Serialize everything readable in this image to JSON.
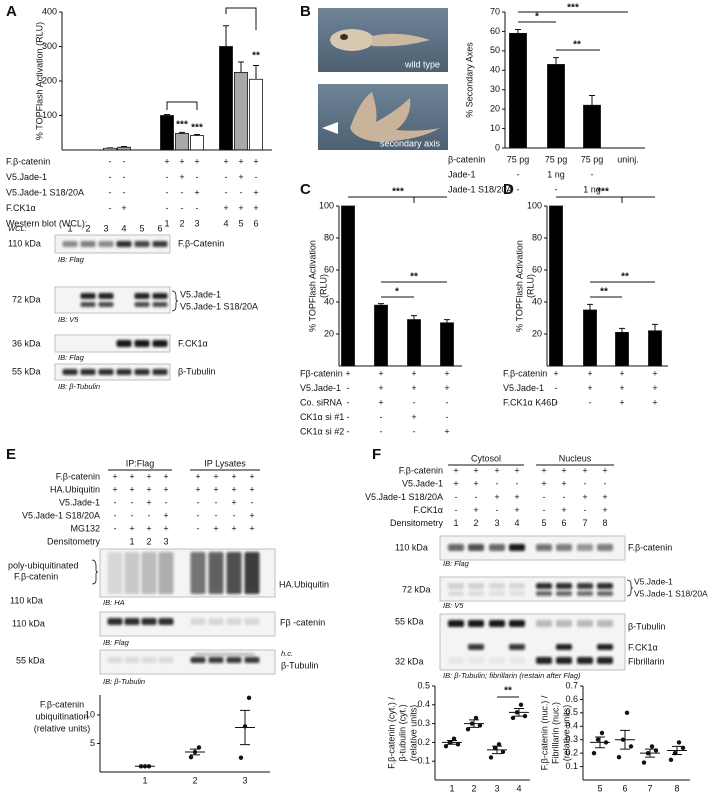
{
  "panel_labels": [
    "A",
    "B",
    "C",
    "D",
    "E",
    "F"
  ],
  "chart_data": [
    {
      "type": "bar",
      "ylabel": [
        "% TOPFlash Activation (RLU)"
      ],
      "ylim": [
        0,
        400
      ],
      "yticks": [
        100,
        200,
        300,
        400
      ],
      "values": [
        5,
        8,
        100,
        48,
        42,
        300,
        225,
        205
      ],
      "errors": [
        1,
        2,
        3,
        3,
        3,
        60,
        30,
        40
      ],
      "colors": [
        "#ffffff",
        "#a8a8a8",
        "#000000",
        "#a8a8a8",
        "#ffffff",
        "#000000",
        "#a8a8a8",
        "#ffffff"
      ],
      "annotations": [
        "***",
        "***",
        "**"
      ],
      "conditions": [
        {
          "label": "F.β-catenin",
          "cells": [
            "-",
            "-",
            "+",
            "+",
            "+",
            "+",
            "+",
            "+"
          ]
        },
        {
          "label": "V5.Jade-1",
          "cells": [
            "-",
            "-",
            "-",
            "+",
            "-",
            "-",
            "+",
            "-"
          ]
        },
        {
          "label": "V5.Jade-1 S18/20A",
          "cells": [
            "-",
            "-",
            "-",
            "-",
            "+",
            "-",
            "-",
            "+"
          ]
        },
        {
          "label": "F.CK1α",
          "cells": [
            "-",
            "+",
            "-",
            "-",
            "-",
            "+",
            "+",
            "+"
          ]
        },
        {
          "label": "Western blot (WCL):",
          "cells": [
            null,
            null,
            "1",
            "2",
            "3",
            "4",
            "5",
            "6"
          ]
        }
      ]
    },
    {
      "type": "bar",
      "ylabel": [
        "% Secondary Axes"
      ],
      "ylim": [
        0,
        70
      ],
      "yticks": [
        0,
        10,
        20,
        30,
        40,
        50,
        60,
        70
      ],
      "values": [
        59,
        43,
        22,
        0
      ],
      "errors": [
        2,
        3.5,
        5,
        null
      ],
      "color": "#000000",
      "annotations": [
        "*",
        "***",
        "**"
      ],
      "conditions": [
        {
          "label": "β-catenin",
          "cells": [
            "75 pg",
            "75 pg",
            "75 pg",
            "uninj."
          ]
        },
        {
          "label": "Jade-1",
          "cells": [
            "-",
            "1 ng",
            "-",
            null
          ]
        },
        {
          "label": "Jade-1 S18/20A",
          "cells": [
            "-",
            "-",
            "1 ng",
            null
          ]
        }
      ]
    },
    {
      "type": "bar",
      "ylabel": [
        "% TOPFlash Activation",
        "(RLU)"
      ],
      "ylim": [
        0,
        100
      ],
      "yticks": [
        20,
        40,
        60,
        80,
        100
      ],
      "values": [
        100,
        38,
        29,
        27
      ],
      "errors": [
        null,
        1,
        2.5,
        2
      ],
      "color": "#000000",
      "annotations": [
        "***",
        "**",
        "*"
      ],
      "conditions": [
        {
          "label": "Fβ-catenin",
          "cells": [
            "+",
            "+",
            "+",
            "+"
          ]
        },
        {
          "label": "V5.Jade-1",
          "cells": [
            "-",
            "+",
            "+",
            "+"
          ]
        },
        {
          "label": "Co. siRNA",
          "cells": [
            "-",
            "+",
            "-",
            "-"
          ]
        },
        {
          "label": "CK1α si #1",
          "cells": [
            "-",
            "-",
            "+",
            "-"
          ]
        },
        {
          "label": "CK1α si #2",
          "cells": [
            "-",
            "-",
            "-",
            "+"
          ]
        }
      ]
    },
    {
      "type": "bar",
      "ylabel": [
        "% TOPFlash Activation",
        "(RLU)"
      ],
      "ylim": [
        0,
        100
      ],
      "yticks": [
        20,
        40,
        60,
        80,
        100
      ],
      "values": [
        100,
        35,
        21,
        22
      ],
      "errors": [
        null,
        3.5,
        2.5,
        4
      ],
      "color": "#000000",
      "annotations": [
        "***",
        "**",
        "**"
      ],
      "conditions": [
        {
          "label": "F.β-catenin",
          "cells": [
            "+",
            "+",
            "+",
            "+"
          ]
        },
        {
          "label": "V5.Jade-1",
          "cells": [
            "-",
            "+",
            "+",
            "+"
          ]
        },
        {
          "label": "F.CK1α K46D",
          "cells": [
            "-",
            "-",
            "+",
            "+"
          ]
        }
      ]
    },
    {
      "type": "dot",
      "ylabel": [
        "F.β-catenin",
        "ubiquitination",
        "(relative units)"
      ],
      "ylim": [
        0,
        13.5
      ],
      "yticks": [
        5,
        10
      ],
      "categories": [
        "1",
        "2",
        "3"
      ],
      "points": [
        [
          1,
          1,
          1
        ],
        [
          2.6,
          3.5,
          4.3
        ],
        [
          2.5,
          8,
          13
        ]
      ],
      "mean": [
        1,
        3.5,
        7.8
      ],
      "sem": [
        null,
        0.5,
        3
      ]
    },
    {
      "type": "dot",
      "ylabel": [
        "F.β-catenin (cyt.) /",
        "β-tubulin (cyt.)",
        "(relative units)"
      ],
      "ylim": [
        0,
        0.5
      ],
      "yticks": [
        0.1,
        0.2,
        0.3,
        0.4,
        0.5
      ],
      "categories": [
        "1",
        "2",
        "3",
        "4"
      ],
      "points": [
        [
          0.18,
          0.2,
          0.22,
          0.19
        ],
        [
          0.27,
          0.3,
          0.33,
          0.29
        ],
        [
          0.12,
          0.17,
          0.19,
          0.15
        ],
        [
          0.33,
          0.36,
          0.4,
          0.34
        ]
      ],
      "mean": [
        0.2,
        0.3,
        0.16,
        0.36
      ],
      "sem": [
        0.01,
        0.02,
        0.02,
        0.02
      ],
      "annotations": [
        "**"
      ]
    },
    {
      "type": "dot",
      "ylabel": [
        "F.β-catenin (nuc.) /",
        "Fibrillarin (nuc.)",
        "(relative units)"
      ],
      "ylim": [
        0,
        0.7
      ],
      "yticks": [
        0.1,
        0.2,
        0.3,
        0.4,
        0.5,
        0.6,
        0.7
      ],
      "categories": [
        "5",
        "6",
        "7",
        "8"
      ],
      "points": [
        [
          0.2,
          0.3,
          0.35,
          0.28
        ],
        [
          0.17,
          0.3,
          0.5,
          0.25
        ],
        [
          0.13,
          0.2,
          0.25,
          0.22
        ],
        [
          0.15,
          0.2,
          0.28,
          0.24
        ]
      ],
      "mean": [
        0.28,
        0.3,
        0.2,
        0.22
      ],
      "sem": [
        0.04,
        0.07,
        0.03,
        0.03
      ]
    }
  ],
  "panel_a_blot": {
    "lane_header": "WCL:",
    "lanes": [
      "1",
      "2",
      "3",
      "4",
      "5",
      "6"
    ],
    "labels": [
      "110 kDa",
      "F.β-Catenin",
      "IB: Flag",
      "72 kDa",
      "V5.Jade-1",
      "V5.Jade-1 S18/20A",
      "IB: V5",
      "36 kDa",
      "F.CK1α",
      "IB: Flag",
      "55 kDa",
      "β-Tubulin",
      "IB: β-Tubulin"
    ]
  },
  "panel_b_images": {
    "labels": [
      "wild type",
      "secondary axis"
    ]
  },
  "panel_e": {
    "headers": [
      "IP:Flag",
      "IP Lysates"
    ],
    "conditions": [
      {
        "label": "F.β-catenin",
        "cells": [
          "+",
          "+",
          "+",
          "+",
          "+",
          "+",
          "+",
          "+"
        ]
      },
      {
        "label": "HA.Ubiquitin",
        "cells": [
          "+",
          "+",
          "+",
          "+",
          "+",
          "+",
          "+",
          "+"
        ]
      },
      {
        "label": "V5.Jade-1",
        "cells": [
          "-",
          "-",
          "+",
          "-",
          "-",
          "-",
          "+",
          "-"
        ]
      },
      {
        "label": "V5.Jade-1 S18/20A",
        "cells": [
          "-",
          "-",
          "-",
          "+",
          "-",
          "-",
          "-",
          "+"
        ]
      },
      {
        "label": "MG132",
        "cells": [
          "-",
          "+",
          "+",
          "+",
          "-",
          "+",
          "+",
          "+"
        ]
      },
      {
        "label": "Densitometry",
        "cells": [
          null,
          "1",
          "2",
          "3",
          null,
          null,
          null,
          null
        ]
      }
    ],
    "labels": [
      "poly-ubiquitinated",
      "F.β-catenin",
      "110 kDa",
      "IB: HA",
      "HA.Ubiquitin",
      "110 kDa",
      "Fβ -catenin",
      "IB: Flag",
      "55 kDa",
      "h.c.",
      "β-Tubulin",
      "IB: β-Tubulin"
    ]
  },
  "panel_f": {
    "headers": [
      "Cytosol",
      "Nucleus"
    ],
    "conditions": [
      {
        "label": "F.β-catenin",
        "cells": [
          "+",
          "+",
          "+",
          "+",
          "+",
          "+",
          "+",
          "+"
        ]
      },
      {
        "label": "V5.Jade-1",
        "cells": [
          "+",
          "+",
          "-",
          "-",
          "+",
          "+",
          "-",
          "-"
        ]
      },
      {
        "label": "V5.Jade-1 S18/20A",
        "cells": [
          "-",
          "-",
          "+",
          "+",
          "-",
          "-",
          "+",
          "+"
        ]
      },
      {
        "label": "F.CK1α",
        "cells": [
          "-",
          "+",
          "-",
          "+",
          "-",
          "+",
          "-",
          "+"
        ]
      },
      {
        "label": "Densitometry",
        "cells": [
          "1",
          "2",
          "3",
          "4",
          "5",
          "6",
          "7",
          "8"
        ]
      }
    ],
    "labels": [
      "110 kDa",
      "F.β-catenin",
      "IB: Flag",
      "72 kDa",
      "V5.Jade-1",
      "V5.Jade-1 S18/20A",
      "IB: V5",
      "55 kDa",
      "β-Tubulin",
      "F.CK1α",
      "32 kDa",
      "Fibrillarin",
      "IB: β-Tubulin; fibrillarin (restain after Flag)"
    ]
  }
}
